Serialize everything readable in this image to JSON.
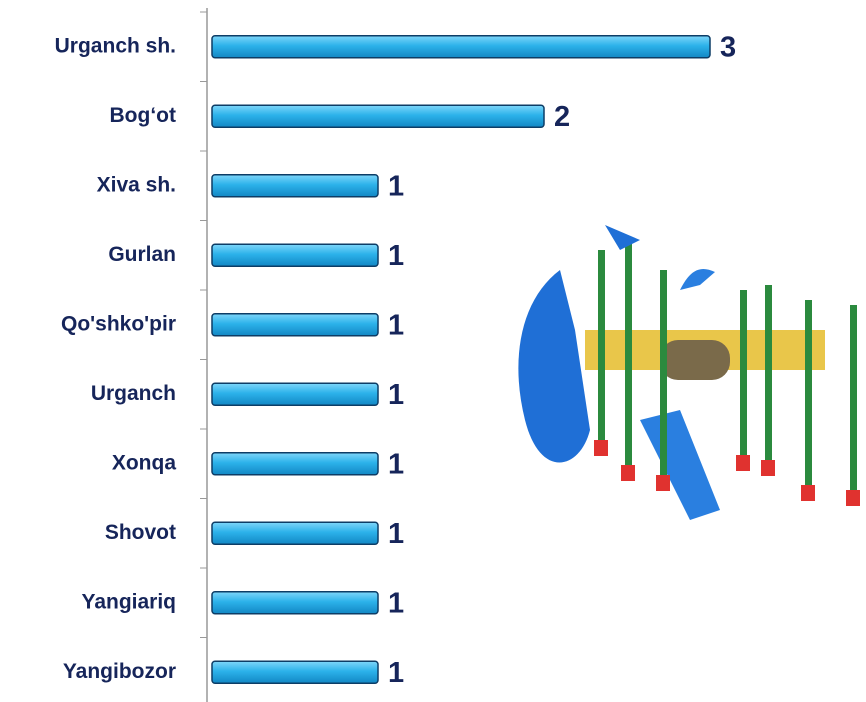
{
  "chart_data": {
    "type": "bar",
    "orientation": "horizontal",
    "categories": [
      "Urganch sh.",
      "Bog‘ot",
      "Xiva sh.",
      "Gurlan",
      "Qo'shko'pir",
      "Urganch ",
      "Xonqa",
      "Shovot",
      "Yangiariq",
      "Yangibozor"
    ],
    "values": [
      3,
      2,
      1,
      1,
      1,
      1,
      1,
      1,
      1,
      1
    ],
    "color": "#29aee6"
  }
}
